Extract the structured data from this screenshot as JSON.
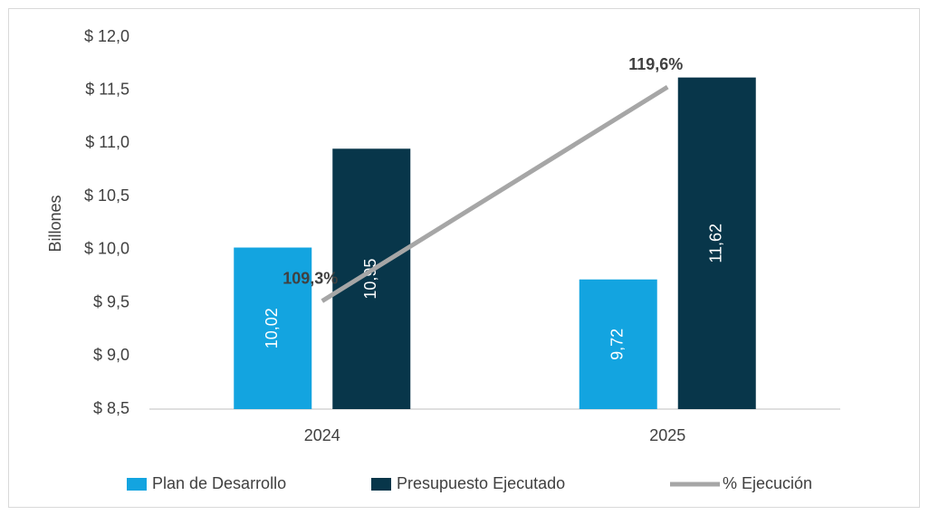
{
  "chart_data": {
    "type": "bar",
    "y_axis_label": "Billones",
    "categories": [
      "2024",
      "2025"
    ],
    "series": [
      {
        "name": "Plan de Desarrollo",
        "type": "bar",
        "color": "#13a4e0",
        "values": [
          10.02,
          9.72
        ],
        "value_labels": [
          "10,02",
          "9,72"
        ]
      },
      {
        "name": "Presupuesto Ejecutado",
        "type": "bar",
        "color": "#08364a",
        "values": [
          10.95,
          11.62
        ],
        "value_labels": [
          "10,95",
          "11,62"
        ]
      },
      {
        "name": "% Ejecución",
        "type": "line",
        "axis": "y2",
        "color": "#a6a6a6",
        "values": [
          109.3,
          119.6
        ],
        "value_labels": [
          "109,3%",
          "119,6%"
        ]
      }
    ],
    "ylim": [
      8.5,
      12.0
    ],
    "yticks": [
      {
        "value": 8.5,
        "label": "$ 8,5"
      },
      {
        "value": 9.0,
        "label": "$ 9,0"
      },
      {
        "value": 9.5,
        "label": "$ 9,5"
      },
      {
        "value": 10.0,
        "label": "$ 10,0"
      },
      {
        "value": 10.5,
        "label": "$ 10,5"
      },
      {
        "value": 11.0,
        "label": "$ 11,0"
      },
      {
        "value": 11.5,
        "label": "$ 11,5"
      },
      {
        "value": 12.0,
        "label": "$ 12,0"
      }
    ],
    "y2lim": [
      104.1,
      122.0
    ],
    "grid": false,
    "legend": "bottom"
  }
}
